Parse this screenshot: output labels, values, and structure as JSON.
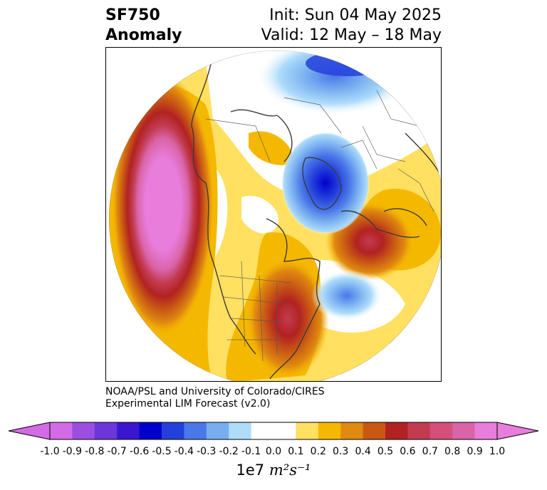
{
  "header": {
    "variable": "SF750",
    "kind": "Anomaly",
    "init": "Init: Sun 04 May 2025",
    "valid": "Valid: 12 May – 18 May"
  },
  "credit": {
    "line1": "NOAA/PSL and University of Colorado/CIRES",
    "line2": "Experimental LIM Forecast (v2.0)"
  },
  "colorbar": {
    "tick_labels": [
      "-1.0",
      "-0.9",
      "-0.8",
      "-0.7",
      "-0.6",
      "-0.5",
      "-0.4",
      "-0.3",
      "-0.2",
      "-0.1",
      "0.0",
      "0.1",
      "0.2",
      "0.3",
      "0.4",
      "0.5",
      "0.6",
      "0.7",
      "0.8",
      "0.9",
      "1.0"
    ],
    "colors": [
      "#d36be6",
      "#9b4fe0",
      "#6b37d8",
      "#3a16d2",
      "#0000cc",
      "#2440db",
      "#4a78e8",
      "#78aef0",
      "#aedcfa",
      "#ffffff",
      "#ffffff",
      "#ffe060",
      "#f5b800",
      "#e08a10",
      "#c85814",
      "#b22222",
      "#c23b50",
      "#d4507a",
      "#da64a8",
      "#e87ddb"
    ],
    "unit_prefix": "1e7",
    "unit_expr": "m²s⁻¹"
  },
  "map": {
    "projection": "north polar stereographic",
    "features": [
      {
        "name": "west-coast-ridge",
        "sign": "positive",
        "peak": 1.0
      },
      {
        "name": "arctic-low",
        "sign": "negative",
        "peak": -0.6
      },
      {
        "name": "europe-high",
        "sign": "positive",
        "peak": 0.7
      },
      {
        "name": "atlantic-low",
        "sign": "negative",
        "peak": -0.4
      },
      {
        "name": "eastern-us-high",
        "sign": "positive",
        "peak": 0.6
      },
      {
        "name": "siberia-low",
        "sign": "negative",
        "peak": -0.5
      }
    ]
  }
}
